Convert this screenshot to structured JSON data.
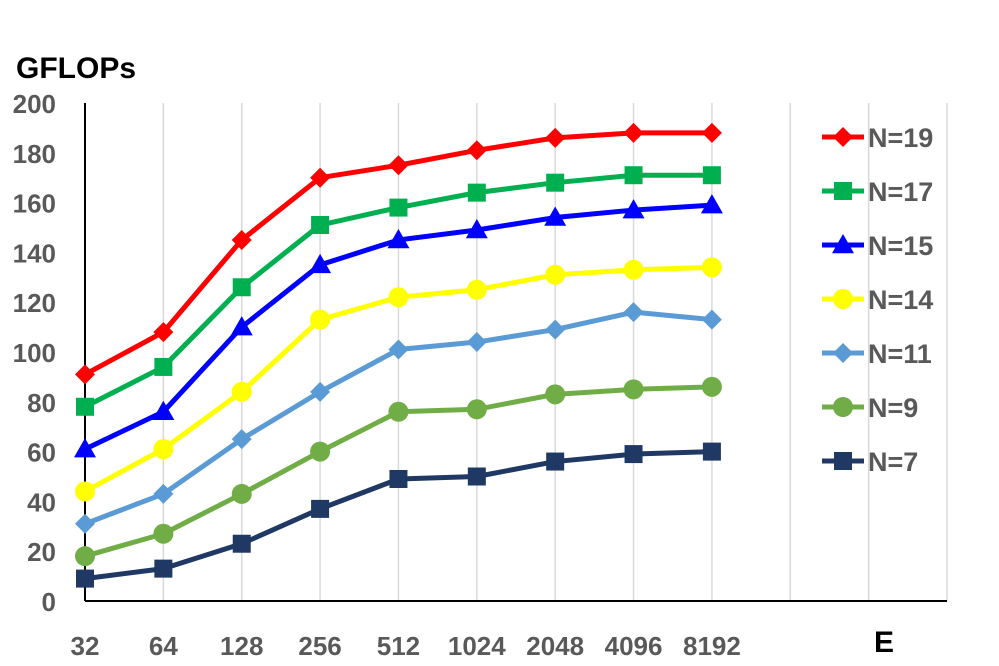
{
  "chart_data": {
    "type": "line",
    "title": "",
    "xlabel": "E",
    "ylabel": "GFLOPs",
    "categories": [
      "32",
      "64",
      "128",
      "256",
      "512",
      "1024",
      "2048",
      "4096",
      "8192"
    ],
    "extra_slots": 2,
    "ylim": [
      0,
      200
    ],
    "yticks": [
      0,
      20,
      40,
      60,
      80,
      100,
      120,
      140,
      160,
      180,
      200
    ],
    "grid": "vertical",
    "legend_position": "right",
    "series": [
      {
        "name": "N=19",
        "color": "#ff0000",
        "marker": "diamond",
        "values": [
          91,
          108,
          145,
          170,
          175,
          181,
          186,
          188,
          188
        ]
      },
      {
        "name": "N=17",
        "color": "#00b050",
        "marker": "square",
        "values": [
          78,
          94,
          126,
          151,
          158,
          164,
          168,
          171,
          171
        ]
      },
      {
        "name": "N=15",
        "color": "#0000ff",
        "marker": "triangle",
        "values": [
          61,
          76,
          110,
          135,
          145,
          149,
          154,
          157,
          159
        ]
      },
      {
        "name": "N=14",
        "color": "#ffff00",
        "marker": "circle",
        "values": [
          44,
          61,
          84,
          113,
          122,
          125,
          131,
          133,
          134
        ]
      },
      {
        "name": "N=11",
        "color": "#5b9bd5",
        "marker": "diamond",
        "values": [
          31,
          43,
          65,
          84,
          101,
          104,
          109,
          116,
          113
        ]
      },
      {
        "name": "N=9",
        "color": "#70ad47",
        "marker": "circle",
        "values": [
          18,
          27,
          43,
          60,
          76,
          77,
          83,
          85,
          86
        ]
      },
      {
        "name": "N=7",
        "color": "#203864",
        "marker": "square",
        "values": [
          9,
          13,
          23,
          37,
          49,
          50,
          56,
          59,
          60
        ]
      }
    ]
  }
}
